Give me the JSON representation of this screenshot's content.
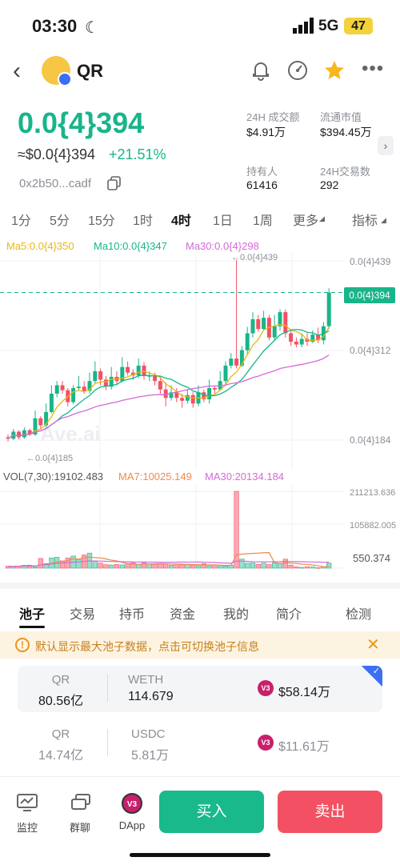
{
  "status_bar": {
    "time": "03:30",
    "network": "5G",
    "battery": "47"
  },
  "header": {
    "token_name": "QR",
    "icons": [
      "bell-icon",
      "gauge-icon",
      "star-icon",
      "more-icon"
    ]
  },
  "price": {
    "main": "0.0{4}394",
    "usd": "≈$0.0{4}394",
    "change": "+21.51%",
    "address": "0x2b50...cadf",
    "change_color": "#18b58a"
  },
  "stats": [
    {
      "label": "24H 成交额",
      "value": "$4.91万"
    },
    {
      "label": "流通市值",
      "value": "$394.45万"
    },
    {
      "label": "持有人",
      "value": "61416"
    },
    {
      "label": "24H交易数",
      "value": "292"
    }
  ],
  "timeframes": [
    "1分",
    "5分",
    "15分",
    "1时",
    "4时",
    "1日",
    "1周",
    "更多",
    "指标"
  ],
  "active_timeframe": "4时",
  "ma_legend": {
    "ma5": "Ma5:0.0{4}350",
    "ma10": "Ma10:0.0{4}347",
    "ma30": "Ma30:0.0{4}298"
  },
  "price_axis": [
    "0.0{4}439",
    "0.0{4}312",
    "0.0{4}184"
  ],
  "current_price_tag": "0.0{4}394",
  "high_marker": "←0.0{4}439",
  "low_marker": "←0.0{4}185",
  "watermark": "Ave.ai",
  "volume_legend": {
    "vol": "VOL(7,30):19102.483",
    "ma7": "MA7:10025.149",
    "ma30": "MA30:20134.184"
  },
  "volume_axis": [
    "211213.636",
    "105882.005",
    "550.374"
  ],
  "colors": {
    "up": "#18b58a",
    "down": "#f35163",
    "ma5": "#e8b812",
    "ma10": "#18b58a",
    "ma30": "#d46ad9"
  },
  "chart_data": {
    "type": "candlestick",
    "price_unit": "0.0{4}",
    "ylim": [
      175,
      445
    ],
    "candles": [
      [
        188,
        186,
        192,
        182
      ],
      [
        186,
        196,
        200,
        184
      ],
      [
        196,
        188,
        198,
        185
      ],
      [
        188,
        198,
        202,
        186
      ],
      [
        198,
        192,
        200,
        190
      ],
      [
        192,
        215,
        226,
        190
      ],
      [
        215,
        205,
        218,
        200
      ],
      [
        205,
        224,
        236,
        202
      ],
      [
        224,
        250,
        262,
        222
      ],
      [
        250,
        262,
        268,
        245
      ],
      [
        262,
        255,
        268,
        250
      ],
      [
        255,
        238,
        258,
        232
      ],
      [
        238,
        258,
        262,
        235
      ],
      [
        258,
        260,
        275,
        255
      ],
      [
        260,
        254,
        268,
        250
      ],
      [
        254,
        268,
        280,
        250
      ],
      [
        268,
        282,
        296,
        265
      ],
      [
        282,
        270,
        286,
        262
      ],
      [
        270,
        260,
        275,
        255
      ],
      [
        260,
        274,
        288,
        256
      ],
      [
        274,
        268,
        282,
        262
      ],
      [
        268,
        288,
        302,
        266
      ],
      [
        288,
        280,
        296,
        276
      ],
      [
        280,
        276,
        285,
        270
      ],
      [
        276,
        290,
        300,
        272
      ],
      [
        290,
        275,
        295,
        270
      ],
      [
        275,
        276,
        282,
        268
      ],
      [
        276,
        268,
        280,
        262
      ],
      [
        268,
        256,
        275,
        250
      ],
      [
        256,
        244,
        266,
        232
      ],
      [
        244,
        252,
        262,
        240
      ],
      [
        252,
        244,
        258,
        238
      ],
      [
        244,
        240,
        250,
        230
      ],
      [
        240,
        248,
        256,
        236
      ],
      [
        248,
        236,
        252,
        230
      ],
      [
        236,
        252,
        262,
        232
      ],
      [
        252,
        242,
        256,
        238
      ],
      [
        242,
        258,
        270,
        236
      ],
      [
        258,
        256,
        262,
        250
      ],
      [
        256,
        268,
        282,
        254
      ],
      [
        268,
        290,
        296,
        262
      ],
      [
        290,
        300,
        308,
        286
      ],
      [
        300,
        290,
        440,
        286
      ],
      [
        290,
        312,
        318,
        288
      ],
      [
        312,
        336,
        345,
        306
      ],
      [
        336,
        356,
        366,
        330
      ],
      [
        356,
        342,
        362,
        338
      ],
      [
        342,
        358,
        368,
        340
      ],
      [
        358,
        330,
        362,
        326
      ],
      [
        330,
        346,
        362,
        326
      ],
      [
        346,
        366,
        370,
        340
      ],
      [
        366,
        336,
        370,
        330
      ],
      [
        336,
        324,
        340,
        318
      ],
      [
        324,
        320,
        330,
        316
      ],
      [
        320,
        328,
        336,
        316
      ],
      [
        328,
        324,
        336,
        318
      ],
      [
        324,
        334,
        340,
        322
      ],
      [
        334,
        326,
        344,
        322
      ],
      [
        326,
        346,
        352,
        320
      ],
      [
        346,
        394,
        400,
        342
      ]
    ],
    "volume": [
      5200,
      4800,
      6100,
      7900,
      8200,
      3500,
      26600,
      12800,
      28100,
      29800,
      19900,
      27800,
      33200,
      24100,
      36300,
      41400,
      18900,
      13900,
      9600,
      8700,
      10100,
      8900,
      13100,
      14600,
      10400,
      14100,
      12000,
      10800,
      11300,
      12400,
      8000,
      11100,
      9100,
      10100,
      8700,
      6700,
      12100,
      6300,
      8200,
      5200,
      5900,
      8400,
      211214,
      24800,
      13700,
      14200,
      10200,
      13900,
      9800,
      15300,
      13800,
      24600,
      8200,
      3700,
      2100,
      4100,
      3000,
      1600,
      3900,
      14000
    ]
  },
  "sections": [
    "池子",
    "交易",
    "持币",
    "资金",
    "我的",
    "简介",
    "检测"
  ],
  "active_section": "池子",
  "notice": "默认显示最大池子数据，点击可切换池子信息",
  "pools": [
    {
      "k1": "QR",
      "v1": "80.56亿",
      "k2": "WETH",
      "v2": "114.679",
      "liquidity": "$58.14万",
      "selected": true
    },
    {
      "k1": "QR",
      "v1": "14.74亿",
      "k2": "USDC",
      "v2": "5.81万",
      "liquidity": "$11.61万",
      "selected": false
    }
  ],
  "bottom_bar": {
    "monitor": "监控",
    "group_chat": "群聊",
    "dapp": "DApp",
    "buy": "买入",
    "sell": "卖出",
    "v3_badge": "V3"
  }
}
